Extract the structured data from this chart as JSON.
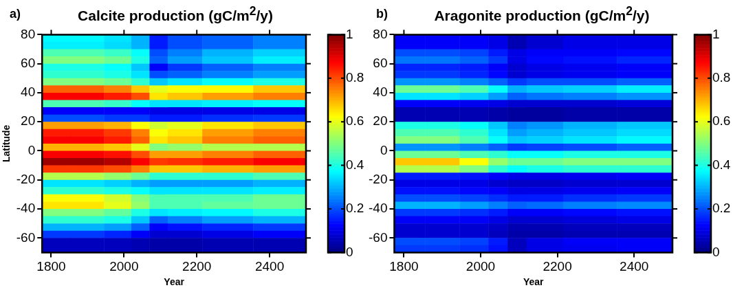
{
  "chart_data": [
    {
      "type": "heatmap",
      "title": "Calcite production (gC/m$^{2}$/y)",
      "xlabel": "Year",
      "ylabel": "Latitude",
      "annotations": [
        "a)"
      ],
      "x": [
        1810,
        1900,
        1990,
        2050,
        2090,
        2150,
        2280,
        2430
      ],
      "cells": [
        [
          0.37,
          0.37,
          0.35,
          0.3,
          0.15,
          0.2,
          0.22,
          0.25
        ],
        [
          0.36,
          0.36,
          0.34,
          0.3,
          0.15,
          0.2,
          0.22,
          0.25
        ],
        [
          0.45,
          0.45,
          0.43,
          0.38,
          0.2,
          0.25,
          0.3,
          0.33
        ],
        [
          0.5,
          0.5,
          0.48,
          0.4,
          0.22,
          0.28,
          0.32,
          0.36
        ],
        [
          0.4,
          0.4,
          0.38,
          0.32,
          0.12,
          0.18,
          0.22,
          0.25
        ],
        [
          0.42,
          0.42,
          0.4,
          0.35,
          0.2,
          0.22,
          0.25,
          0.28
        ],
        [
          0.5,
          0.5,
          0.48,
          0.42,
          0.32,
          0.35,
          0.38,
          0.4
        ],
        [
          0.78,
          0.78,
          0.75,
          0.68,
          0.6,
          0.62,
          0.63,
          0.68
        ],
        [
          0.88,
          0.88,
          0.85,
          0.8,
          0.65,
          0.68,
          0.72,
          0.75
        ],
        [
          0.45,
          0.45,
          0.43,
          0.38,
          0.35,
          0.35,
          0.36,
          0.38
        ],
        [
          0.12,
          0.12,
          0.12,
          0.12,
          0.1,
          0.1,
          0.1,
          0.1
        ],
        [
          0.2,
          0.2,
          0.18,
          0.18,
          0.15,
          0.15,
          0.17,
          0.18
        ],
        [
          0.72,
          0.72,
          0.7,
          0.62,
          0.58,
          0.6,
          0.65,
          0.68
        ],
        [
          0.85,
          0.85,
          0.82,
          0.75,
          0.62,
          0.65,
          0.72,
          0.75
        ],
        [
          0.88,
          0.88,
          0.85,
          0.78,
          0.65,
          0.68,
          0.75,
          0.78
        ],
        [
          0.7,
          0.7,
          0.68,
          0.6,
          0.5,
          0.52,
          0.55,
          0.55
        ],
        [
          0.88,
          0.88,
          0.86,
          0.8,
          0.72,
          0.72,
          0.75,
          0.78
        ],
        [
          0.97,
          0.97,
          0.95,
          0.88,
          0.82,
          0.83,
          0.85,
          0.88
        ],
        [
          0.82,
          0.82,
          0.8,
          0.75,
          0.68,
          0.68,
          0.7,
          0.72
        ],
        [
          0.55,
          0.55,
          0.52,
          0.48,
          0.42,
          0.42,
          0.42,
          0.45
        ],
        [
          0.35,
          0.35,
          0.33,
          0.3,
          0.28,
          0.28,
          0.28,
          0.3
        ],
        [
          0.42,
          0.42,
          0.4,
          0.38,
          0.35,
          0.35,
          0.35,
          0.36
        ],
        [
          0.62,
          0.62,
          0.58,
          0.5,
          0.45,
          0.45,
          0.45,
          0.48
        ],
        [
          0.65,
          0.65,
          0.6,
          0.52,
          0.45,
          0.45,
          0.47,
          0.48
        ],
        [
          0.5,
          0.5,
          0.47,
          0.4,
          0.35,
          0.36,
          0.37,
          0.4
        ],
        [
          0.42,
          0.42,
          0.4,
          0.32,
          0.22,
          0.25,
          0.28,
          0.3
        ],
        [
          0.3,
          0.3,
          0.28,
          0.22,
          0.12,
          0.14,
          0.16,
          0.18
        ],
        [
          0.18,
          0.18,
          0.16,
          0.12,
          0.08,
          0.08,
          0.1,
          0.12
        ],
        [
          0.06,
          0.06,
          0.06,
          0.05,
          0.04,
          0.04,
          0.05,
          0.05
        ],
        [
          0.06,
          0.06,
          0.06,
          0.05,
          0.04,
          0.04,
          0.05,
          0.05
        ]
      ],
      "xlim": [
        1775,
        2500
      ],
      "ylim": [
        -70,
        80
      ],
      "xticks": [
        1800,
        2000,
        2200,
        2400
      ],
      "yticks": [
        -60,
        -40,
        -20,
        0,
        20,
        40,
        60,
        80
      ],
      "clim": [
        0,
        1
      ],
      "cticks": [
        0,
        0.2,
        0.4,
        0.6,
        0.8,
        1
      ]
    },
    {
      "type": "heatmap",
      "title": "Aragonite production (gC/m$^{2}$/y)",
      "xlabel": "Year",
      "annotations": [
        "b)"
      ],
      "x": [
        1810,
        1900,
        1990,
        2050,
        2090,
        2150,
        2280,
        2430
      ],
      "cells": [
        [
          0.12,
          0.12,
          0.12,
          0.1,
          0.05,
          0.08,
          0.1,
          0.1
        ],
        [
          0.12,
          0.12,
          0.12,
          0.1,
          0.05,
          0.08,
          0.1,
          0.1
        ],
        [
          0.2,
          0.2,
          0.19,
          0.15,
          0.1,
          0.12,
          0.12,
          0.13
        ],
        [
          0.24,
          0.24,
          0.22,
          0.18,
          0.1,
          0.13,
          0.14,
          0.16
        ],
        [
          0.16,
          0.16,
          0.15,
          0.12,
          0.08,
          0.1,
          0.11,
          0.12
        ],
        [
          0.18,
          0.18,
          0.16,
          0.13,
          0.08,
          0.1,
          0.11,
          0.12
        ],
        [
          0.27,
          0.27,
          0.25,
          0.22,
          0.18,
          0.2,
          0.2,
          0.22
        ],
        [
          0.48,
          0.48,
          0.45,
          0.38,
          0.3,
          0.32,
          0.33,
          0.36
        ],
        [
          0.35,
          0.35,
          0.33,
          0.28,
          0.22,
          0.24,
          0.25,
          0.27
        ],
        [
          0.12,
          0.12,
          0.11,
          0.1,
          0.08,
          0.08,
          0.08,
          0.09
        ],
        [
          0.05,
          0.05,
          0.05,
          0.04,
          0.03,
          0.03,
          0.04,
          0.04
        ],
        [
          0.05,
          0.05,
          0.05,
          0.04,
          0.03,
          0.03,
          0.04,
          0.04
        ],
        [
          0.4,
          0.4,
          0.38,
          0.32,
          0.25,
          0.27,
          0.3,
          0.32
        ],
        [
          0.45,
          0.45,
          0.42,
          0.35,
          0.28,
          0.3,
          0.32,
          0.34
        ],
        [
          0.5,
          0.5,
          0.45,
          0.38,
          0.32,
          0.33,
          0.35,
          0.37
        ],
        [
          0.27,
          0.27,
          0.25,
          0.22,
          0.18,
          0.19,
          0.2,
          0.22
        ],
        [
          0.48,
          0.48,
          0.45,
          0.42,
          0.38,
          0.38,
          0.4,
          0.4
        ],
        [
          0.68,
          0.68,
          0.62,
          0.52,
          0.48,
          0.48,
          0.5,
          0.5
        ],
        [
          0.55,
          0.55,
          0.5,
          0.42,
          0.38,
          0.4,
          0.42,
          0.42
        ],
        [
          0.15,
          0.15,
          0.14,
          0.12,
          0.1,
          0.1,
          0.11,
          0.12
        ],
        [
          0.1,
          0.1,
          0.1,
          0.08,
          0.07,
          0.07,
          0.08,
          0.08
        ],
        [
          0.14,
          0.14,
          0.13,
          0.12,
          0.1,
          0.1,
          0.11,
          0.12
        ],
        [
          0.2,
          0.2,
          0.19,
          0.17,
          0.15,
          0.15,
          0.17,
          0.18
        ],
        [
          0.3,
          0.3,
          0.28,
          0.25,
          0.22,
          0.23,
          0.25,
          0.26
        ],
        [
          0.18,
          0.18,
          0.17,
          0.15,
          0.12,
          0.12,
          0.13,
          0.14
        ],
        [
          0.12,
          0.12,
          0.12,
          0.1,
          0.08,
          0.08,
          0.09,
          0.1
        ],
        [
          0.08,
          0.08,
          0.08,
          0.07,
          0.05,
          0.05,
          0.06,
          0.06
        ],
        [
          0.08,
          0.08,
          0.08,
          0.06,
          0.04,
          0.04,
          0.05,
          0.05
        ],
        [
          0.2,
          0.2,
          0.19,
          0.15,
          0.06,
          0.1,
          0.12,
          0.12
        ],
        [
          0.18,
          0.18,
          0.17,
          0.14,
          0.06,
          0.1,
          0.11,
          0.12
        ]
      ],
      "xlim": [
        1775,
        2500
      ],
      "ylim": [
        -70,
        80
      ],
      "xticks": [
        1800,
        2000,
        2200,
        2400
      ],
      "yticks": [
        -60,
        -40,
        -20,
        0,
        20,
        40,
        60,
        80
      ],
      "clim": [
        0,
        1
      ],
      "cticks": [
        0,
        0.2,
        0.4,
        0.6,
        0.8,
        1
      ]
    }
  ]
}
